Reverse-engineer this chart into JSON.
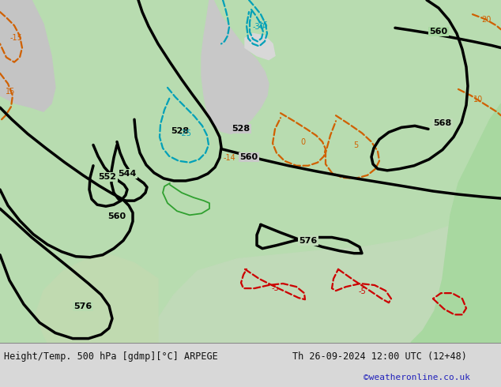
{
  "title_left": "Height/Temp. 500 hPa [gdmp][°C] ARPEGE",
  "title_right": "Th 26-09-2024 12:00 UTC (12+48)",
  "watermark": "©weatheronline.co.uk",
  "bg_color": "#d8d8d8",
  "map_green": "#b8dcb0",
  "map_green2": "#c8e8c0",
  "map_gray": "#c0c0c0",
  "map_white": "#e8e8e8",
  "title_color": "#111111",
  "watermark_color": "#2222bb",
  "font_family": "monospace",
  "col_black": "#000000",
  "col_cyan": "#00a0b8",
  "col_orange": "#d06000",
  "col_red": "#cc0000",
  "col_green_line": "#30a030",
  "lw_black": 2.5,
  "lw_temp": 1.6
}
